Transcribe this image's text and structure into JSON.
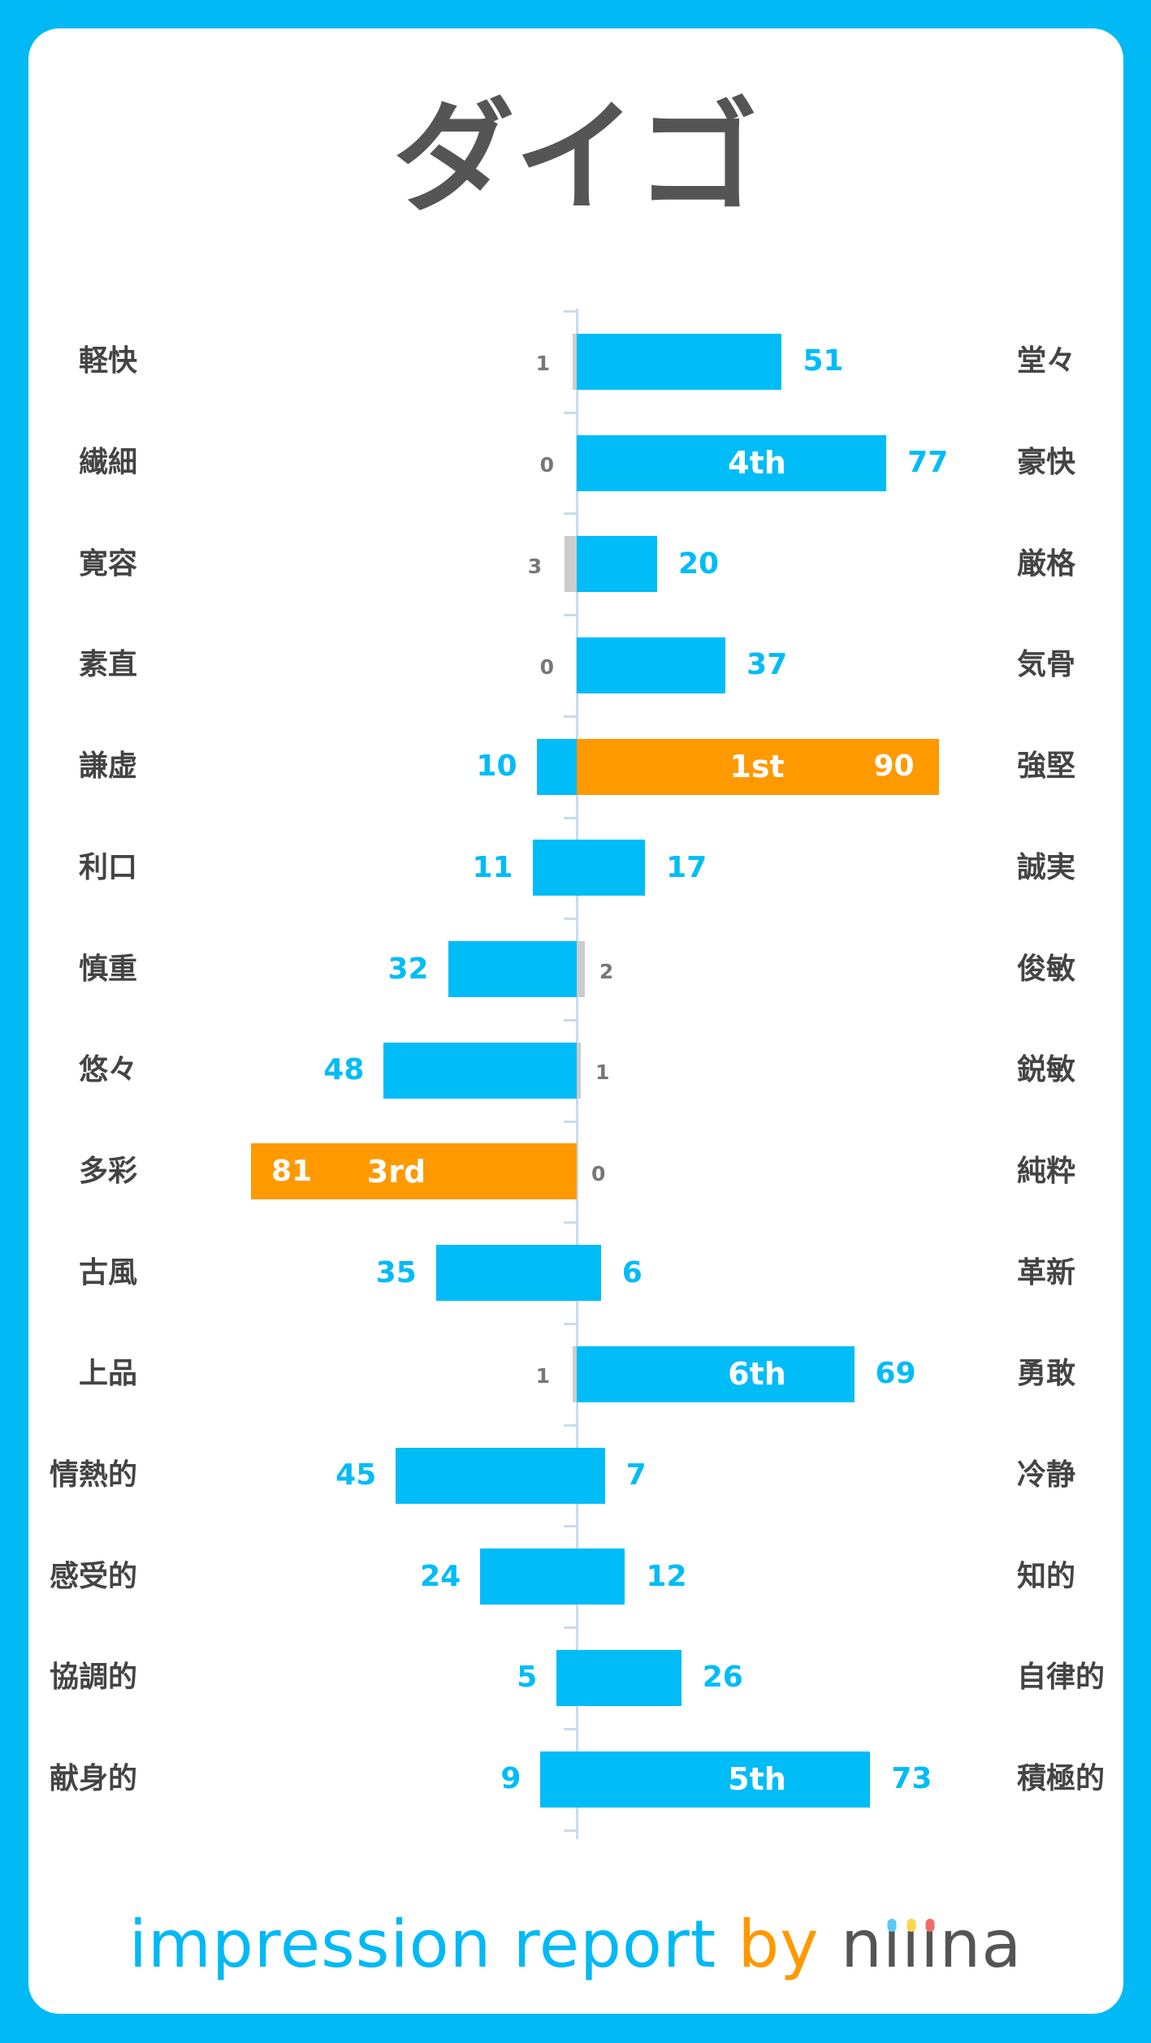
{
  "title": "ダイゴ",
  "colors": {
    "bar": "#00bcf7",
    "top": "#ff9900",
    "low": "#cccccc",
    "text": "#444444",
    "small_text": "#777777",
    "frame": "#00b9f5"
  },
  "footer": {
    "part1": "impression report",
    "part2": "by",
    "brand_letters": [
      "n",
      "ı",
      "ı",
      "ı",
      "n",
      "a"
    ],
    "brand": "niiina",
    "dot_colors": [
      "#5bc8f5",
      "#ffd84a",
      "#f26b6b"
    ]
  },
  "chart_data": {
    "type": "bar",
    "orientation": "diverging-horizontal",
    "xlim": [
      0,
      100
    ],
    "rows": [
      {
        "left_label": "軽快",
        "left": 1,
        "right": 51,
        "right_label": "堂々"
      },
      {
        "left_label": "繊細",
        "left": 0,
        "right": 77,
        "right_label": "豪快",
        "rank": "4th",
        "rank_side": "right"
      },
      {
        "left_label": "寛容",
        "left": 3,
        "right": 20,
        "right_label": "厳格"
      },
      {
        "left_label": "素直",
        "left": 0,
        "right": 37,
        "right_label": "気骨"
      },
      {
        "left_label": "謙虚",
        "left": 10,
        "right": 90,
        "right_label": "強堅",
        "rank": "1st",
        "rank_side": "right"
      },
      {
        "left_label": "利口",
        "left": 11,
        "right": 17,
        "right_label": "誠実"
      },
      {
        "left_label": "慎重",
        "left": 32,
        "right": 2,
        "right_label": "俊敏"
      },
      {
        "left_label": "悠々",
        "left": 48,
        "right": 1,
        "right_label": "鋭敏"
      },
      {
        "left_label": "多彩",
        "left": 81,
        "right": 0,
        "right_label": "純粋",
        "rank": "3rd",
        "rank_side": "left"
      },
      {
        "left_label": "古風",
        "left": 35,
        "right": 6,
        "right_label": "革新"
      },
      {
        "left_label": "上品",
        "left": 1,
        "right": 69,
        "right_label": "勇敢",
        "rank": "6th",
        "rank_side": "right"
      },
      {
        "left_label": "情熱的",
        "left": 45,
        "right": 7,
        "right_label": "冷静"
      },
      {
        "left_label": "感受的",
        "left": 24,
        "right": 12,
        "right_label": "知的"
      },
      {
        "left_label": "協調的",
        "left": 5,
        "right": 26,
        "right_label": "自律的"
      },
      {
        "left_label": "献身的",
        "left": 9,
        "right": 73,
        "right_label": "積極的",
        "rank": "5th",
        "rank_side": "right"
      }
    ]
  }
}
